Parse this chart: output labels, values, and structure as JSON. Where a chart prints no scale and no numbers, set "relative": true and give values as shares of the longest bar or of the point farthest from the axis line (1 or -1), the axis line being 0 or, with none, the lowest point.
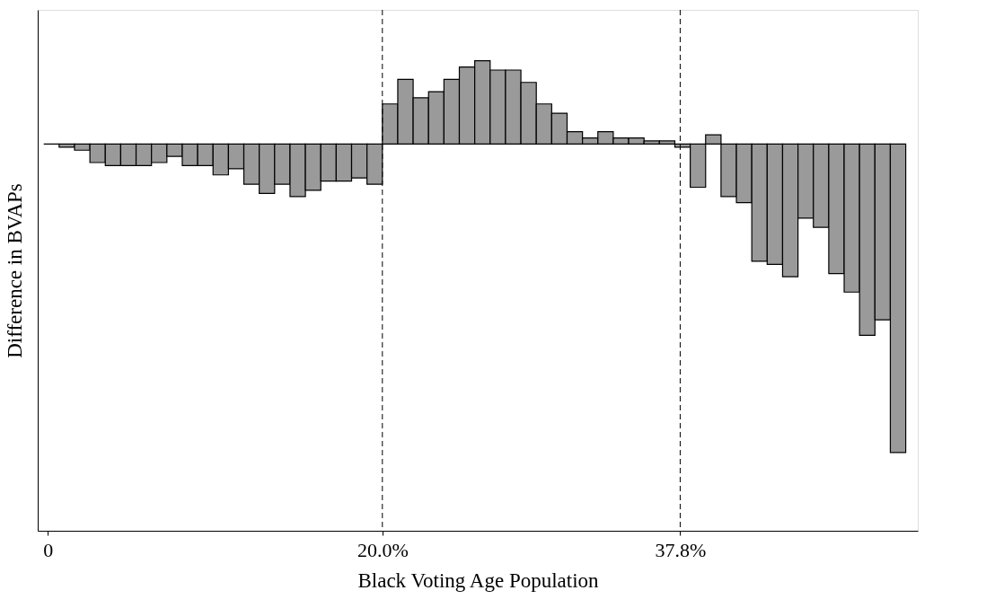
{
  "chart_data": {
    "type": "bar",
    "xlabel": "Black Voting Age Population",
    "ylabel": "Difference in BVAPs",
    "relative": true,
    "x": [
      0.22,
      1.14,
      2.06,
      2.98,
      3.9,
      4.82,
      5.74,
      6.66,
      7.58,
      8.5,
      9.42,
      10.34,
      11.26,
      12.18,
      13.1,
      14.02,
      14.94,
      15.86,
      16.78,
      17.7,
      18.62,
      19.54,
      20.46,
      21.38,
      22.3,
      23.22,
      24.14,
      25.06,
      25.98,
      26.9,
      27.82,
      28.74,
      29.66,
      30.58,
      31.5,
      32.42,
      33.34,
      34.26,
      35.18,
      36.1,
      37.02,
      37.94,
      38.86,
      39.78,
      40.7,
      41.62,
      42.54,
      43.46,
      44.38,
      45.3,
      46.22,
      47.14,
      48.06,
      48.98,
      49.9,
      50.82
    ],
    "values": [
      0,
      -0.01,
      -0.02,
      -0.06,
      -0.07,
      -0.07,
      -0.07,
      -0.06,
      -0.04,
      -0.07,
      -0.07,
      -0.1,
      -0.08,
      -0.13,
      -0.16,
      -0.13,
      -0.17,
      -0.15,
      -0.12,
      -0.12,
      -0.11,
      -0.13,
      0.13,
      0.21,
      0.15,
      0.17,
      0.21,
      0.25,
      0.27,
      0.24,
      0.24,
      0.2,
      0.13,
      0.1,
      0.04,
      0.02,
      0.04,
      0.02,
      0.02,
      0.01,
      0.01,
      -0.01,
      -0.14,
      0.03,
      -0.17,
      -0.19,
      -0.38,
      -0.39,
      -0.43,
      -0.24,
      -0.27,
      -0.42,
      -0.48,
      -0.62,
      -0.57,
      -1
    ],
    "colors": [
      "#000000",
      "#9a9a9a",
      "#9a9a9a",
      "#9a9a9a",
      "#9a9a9a",
      "#9a9a9a",
      "#9a9a9a",
      "#9a9a9a",
      "#9a9a9a",
      "#9a9a9a",
      "#9a9a9a",
      "#9a9a9a",
      "#9a9a9a",
      "#9a9a9a",
      "#9a9a9a",
      "#9a9a9a",
      "#9a9a9a",
      "#9a9a9a",
      "#9a9a9a",
      "#9a9a9a",
      "#9a9a9a",
      "#9a9a9a",
      "#9a9a9a",
      "#9a9a9a",
      "#9a9a9a",
      "#9a9a9a",
      "#9a9a9a",
      "#9a9a9a",
      "#9a9a9a",
      "#9a9a9a",
      "#9a9a9a",
      "#9a9a9a",
      "#9a9a9a",
      "#9a9a9a",
      "#9a9a9a",
      "#9a9a9a",
      "#9a9a9a",
      "#9a9a9a",
      "#9a9a9a",
      "#9a9a9a",
      "#9a9a9a",
      "#9a9a9a",
      "#9a9a9a",
      "#9a9a9a",
      "#9a9a9a",
      "#9a9a9a",
      "#9a9a9a",
      "#9a9a9a",
      "#9a9a9a",
      "#9a9a9a",
      "#9a9a9a",
      "#9a9a9a",
      "#9a9a9a",
      "#9a9a9a",
      "#9a9a9a",
      "#9a9a9a"
    ],
    "xlim": [
      -0.6,
      52.0
    ],
    "xticks": [
      {
        "value": 0,
        "label": "0"
      },
      {
        "value": 20,
        "label": "20.0%"
      },
      {
        "value": 37.8,
        "label": "37.8%"
      }
    ],
    "ref_lines": [
      {
        "axis": "x",
        "value": 20,
        "color": "#000000",
        "line_style": "dashed"
      },
      {
        "axis": "x",
        "value": 37.8,
        "color": "#000000",
        "line_style": "dashed"
      }
    ],
    "grid": false
  }
}
